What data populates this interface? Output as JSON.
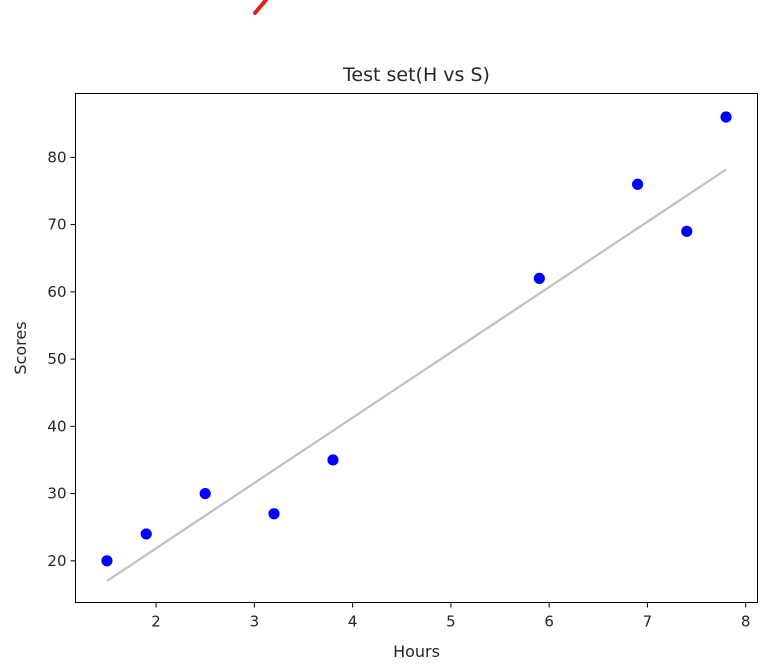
{
  "chart_data": {
    "type": "scatter",
    "title": "Test set(H vs S)",
    "xlabel": "Hours",
    "ylabel": "Scores",
    "xlim": [
      1.18,
      8.12
    ],
    "ylim": [
      13.8,
      89.5
    ],
    "xticks": [
      2,
      3,
      4,
      5,
      6,
      7,
      8
    ],
    "yticks": [
      20,
      30,
      40,
      50,
      60,
      70,
      80
    ],
    "grid": false,
    "series": [
      {
        "type": "scatter",
        "color": "#0000ff",
        "x": [
          1.5,
          1.9,
          2.5,
          3.2,
          3.8,
          5.9,
          6.9,
          7.4,
          7.8
        ],
        "y": [
          20,
          24,
          30,
          27,
          35,
          62,
          76,
          69,
          86
        ]
      },
      {
        "type": "line",
        "color": "#c0c0c0",
        "x": [
          1.5,
          7.8
        ],
        "y": [
          17.0,
          78.2
        ]
      }
    ],
    "annotation_mark_color": "#e02020"
  }
}
